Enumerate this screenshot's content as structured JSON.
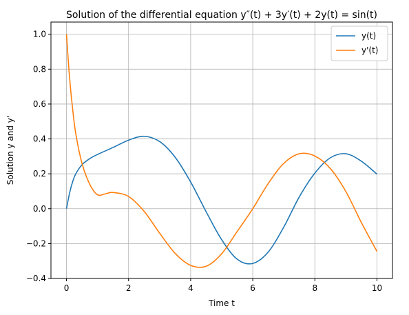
{
  "chart_data": {
    "type": "line",
    "title": "Solution of the differential equation y″(t) + 3y′(t) + 2y(t) = sin(t)",
    "xlabel": "Time t",
    "ylabel": "Solution y and y'",
    "xlim": [
      -0.5,
      10.5
    ],
    "ylim": [
      -0.4,
      1.07
    ],
    "xticks": [
      0,
      2,
      4,
      6,
      8,
      10
    ],
    "yticks": [
      -0.4,
      -0.2,
      0.0,
      0.2,
      0.4,
      0.6,
      0.8,
      1.0
    ],
    "xtick_labels": [
      "0",
      "2",
      "4",
      "6",
      "8",
      "10"
    ],
    "ytick_labels": [
      "−0.4",
      "−0.2",
      "0.0",
      "0.2",
      "0.4",
      "0.6",
      "0.8",
      "1.0"
    ],
    "grid": true,
    "legend_position": "top-right",
    "series": [
      {
        "name": "y(t)",
        "color": "#1f77b4",
        "x": [
          0,
          0.1,
          0.2,
          0.3,
          0.5,
          0.75,
          1.0,
          1.5,
          2.0,
          2.5,
          3.0,
          3.5,
          4.0,
          4.5,
          5.0,
          5.5,
          6.0,
          6.5,
          7.0,
          7.5,
          8.0,
          8.5,
          9.0,
          9.5,
          10.0
        ],
        "values": [
          0.0,
          0.09,
          0.155,
          0.2,
          0.252,
          0.287,
          0.311,
          0.351,
          0.393,
          0.415,
          0.385,
          0.295,
          0.153,
          -0.018,
          -0.178,
          -0.29,
          -0.314,
          -0.248,
          -0.105,
          0.068,
          0.204,
          0.292,
          0.315,
          0.272,
          0.198
        ]
      },
      {
        "name": "y'(t)",
        "color": "#ff7f0e",
        "x": [
          0,
          0.1,
          0.2,
          0.3,
          0.5,
          0.75,
          1.0,
          1.25,
          1.5,
          2.0,
          2.5,
          3.0,
          3.5,
          4.0,
          4.5,
          5.0,
          5.5,
          6.0,
          6.5,
          7.0,
          7.5,
          8.0,
          8.5,
          9.0,
          9.5,
          10.0
        ],
        "values": [
          1.0,
          0.75,
          0.57,
          0.43,
          0.26,
          0.14,
          0.08,
          0.085,
          0.093,
          0.07,
          -0.015,
          -0.14,
          -0.256,
          -0.325,
          -0.33,
          -0.258,
          -0.13,
          0.0,
          0.145,
          0.26,
          0.315,
          0.302,
          0.23,
          0.098,
          -0.08,
          -0.245
        ]
      }
    ]
  }
}
